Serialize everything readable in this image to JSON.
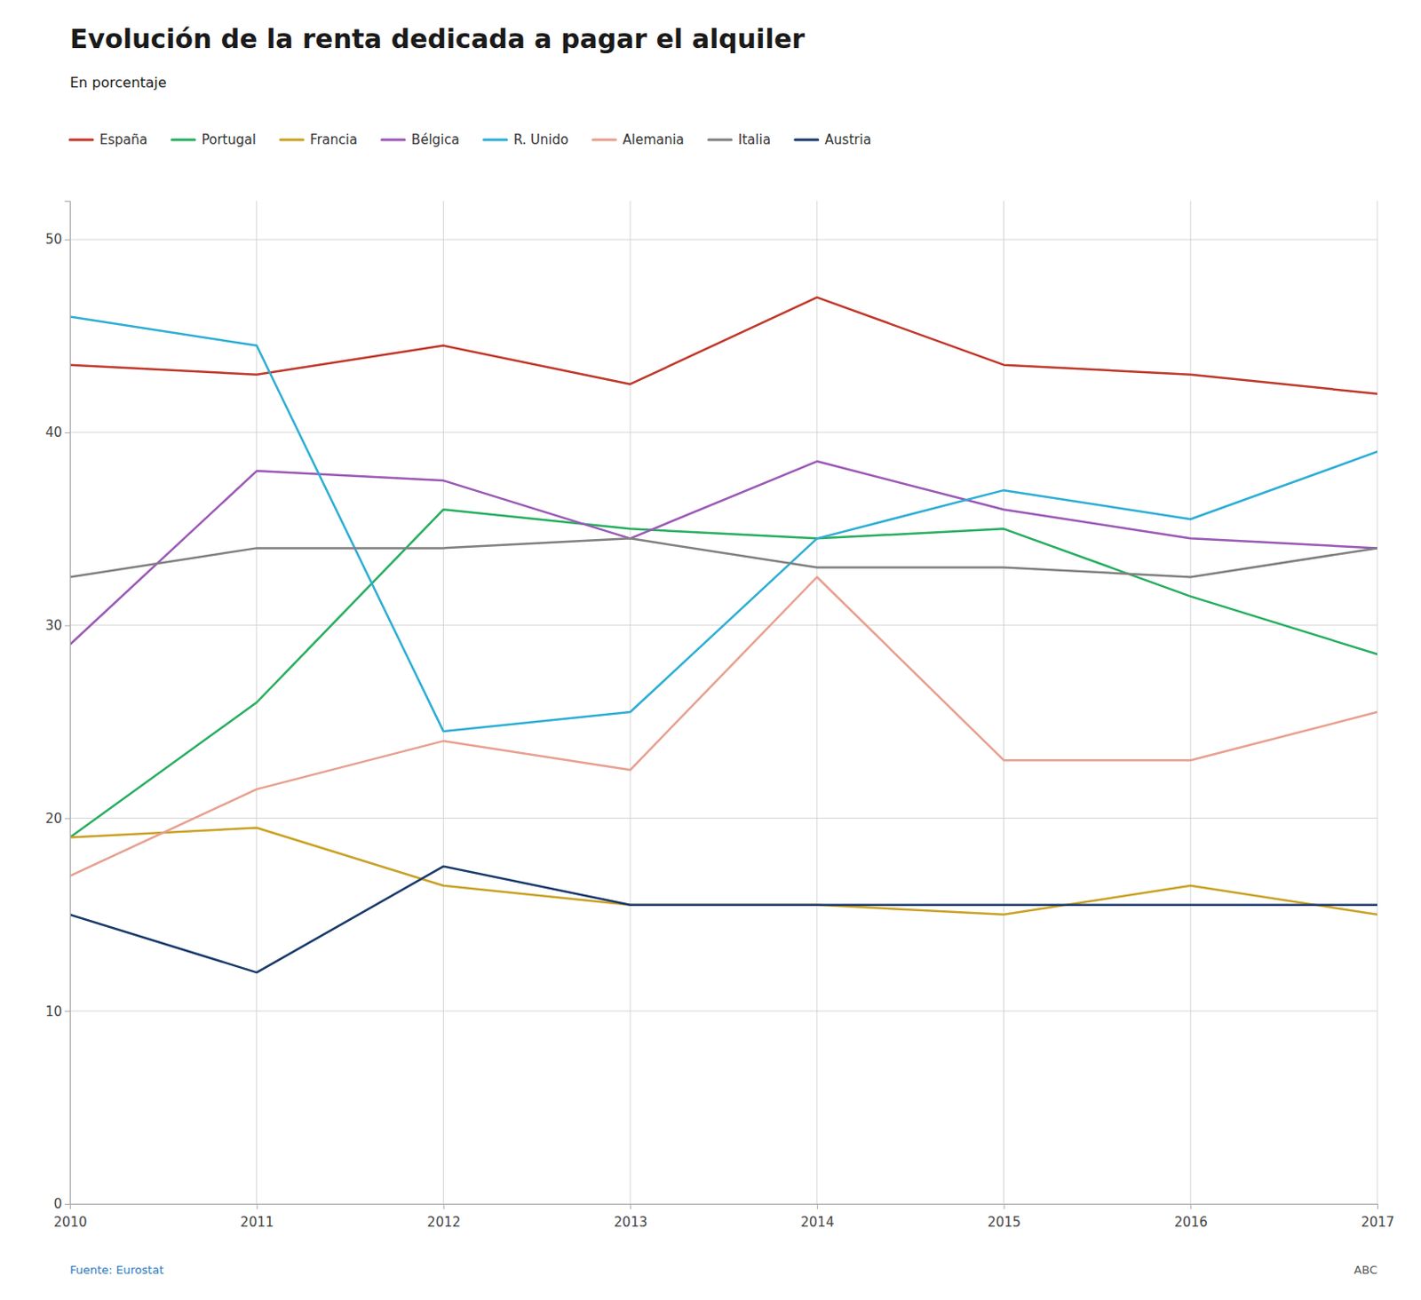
{
  "chart_data": {
    "type": "line",
    "title": "Evolución de la renta dedicada a pagar el alquiler",
    "subtitle": "En porcentaje",
    "annotations": [
      "Fuente: Eurostat",
      "ABC"
    ],
    "x": [
      2010,
      2011,
      2012,
      2013,
      2014,
      2015,
      2016,
      2017
    ],
    "series": [
      {
        "name": "España",
        "color": "#c0392b",
        "values": [
          43.5,
          43.0,
          44.5,
          42.5,
          47.0,
          43.5,
          43.0,
          42.0
        ]
      },
      {
        "name": "Portugal",
        "color": "#27ae60",
        "values": [
          19.0,
          26.0,
          36.0,
          35.0,
          34.5,
          35.0,
          31.5,
          28.5
        ]
      },
      {
        "name": "Francia",
        "color": "#c9a227",
        "values": [
          19.0,
          19.5,
          16.5,
          15.5,
          15.5,
          15.0,
          16.5,
          15.0
        ]
      },
      {
        "name": "Bélgica",
        "color": "#9b59b6",
        "values": [
          29.0,
          38.0,
          37.5,
          34.5,
          38.5,
          36.0,
          34.5,
          34.0
        ]
      },
      {
        "name": "R. Unido",
        "color": "#2eaed4",
        "values": [
          46.0,
          44.5,
          24.5,
          25.5,
          34.5,
          37.0,
          35.5,
          39.0
        ]
      },
      {
        "name": "Alemania",
        "color": "#e8a090",
        "values": [
          17.0,
          21.5,
          24.0,
          22.5,
          32.5,
          23.0,
          23.0,
          25.5
        ]
      },
      {
        "name": "Italia",
        "color": "#808080",
        "values": [
          32.5,
          34.0,
          34.0,
          34.5,
          33.0,
          33.0,
          32.5,
          34.0
        ]
      },
      {
        "name": "Austria",
        "color": "#1a3a6b",
        "values": [
          15.0,
          12.0,
          17.5,
          15.5,
          15.5,
          15.5,
          15.5,
          15.5
        ]
      }
    ],
    "xlim": [
      2010,
      2017
    ],
    "xticks": [
      2010,
      2011,
      2012,
      2013,
      2014,
      2015,
      2016,
      2017
    ],
    "ylim": [
      0,
      52
    ],
    "yticks": [
      0,
      10,
      20,
      30,
      40,
      50
    ],
    "grid": true,
    "legend": "top-left"
  }
}
